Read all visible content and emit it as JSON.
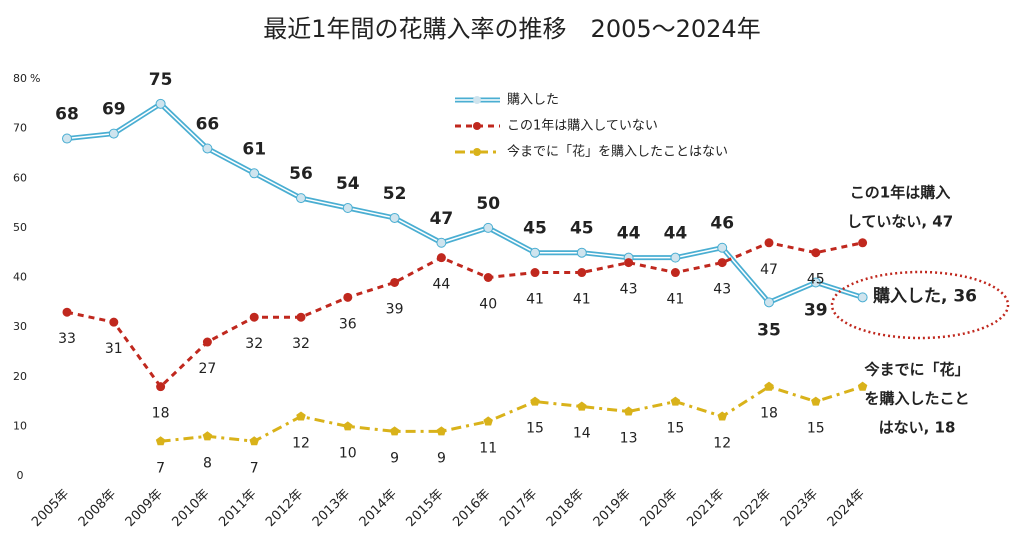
{
  "chart_data": {
    "type": "line",
    "title": "最近1年間の花購入率の推移　2005～2024年",
    "y_unit": "%",
    "categories": [
      "2005年",
      "2008年",
      "2009年",
      "2010年",
      "2011年",
      "2012年",
      "2013年",
      "2014年",
      "2015年",
      "2016年",
      "2017年",
      "2018年",
      "2019年",
      "2020年",
      "2021年",
      "2022年",
      "2023年",
      "2024年"
    ],
    "ylim": [
      0,
      80
    ],
    "yticks": [
      0,
      10,
      20,
      30,
      40,
      50,
      60,
      70,
      80
    ],
    "grid": false,
    "legend": "top",
    "series": [
      {
        "name": "購入した",
        "color": "#4aaed2",
        "style": "double",
        "values": [
          68,
          69,
          75,
          66,
          61,
          56,
          54,
          52,
          47,
          50,
          45,
          45,
          44,
          44,
          46,
          35,
          39,
          36
        ],
        "annotation": [
          "購入した, 36"
        ]
      },
      {
        "name": "この1年は購入していない",
        "color": "#c0281e",
        "style": "dashed",
        "values": [
          33,
          31,
          18,
          27,
          32,
          32,
          36,
          39,
          44,
          40,
          41,
          41,
          43,
          41,
          43,
          47,
          45,
          47
        ],
        "annotation": [
          "この1年は購入",
          "していない, 47"
        ]
      },
      {
        "name": "今までに「花」を購入したことはない",
        "color": "#d9b21a",
        "style": "dashdot",
        "values": [
          null,
          null,
          7,
          8,
          7,
          12,
          10,
          9,
          9,
          11,
          15,
          14,
          13,
          15,
          12,
          18,
          15,
          18
        ],
        "annotation": [
          "今までに「花」",
          "を購入したこと",
          "はない, 18"
        ]
      }
    ]
  }
}
